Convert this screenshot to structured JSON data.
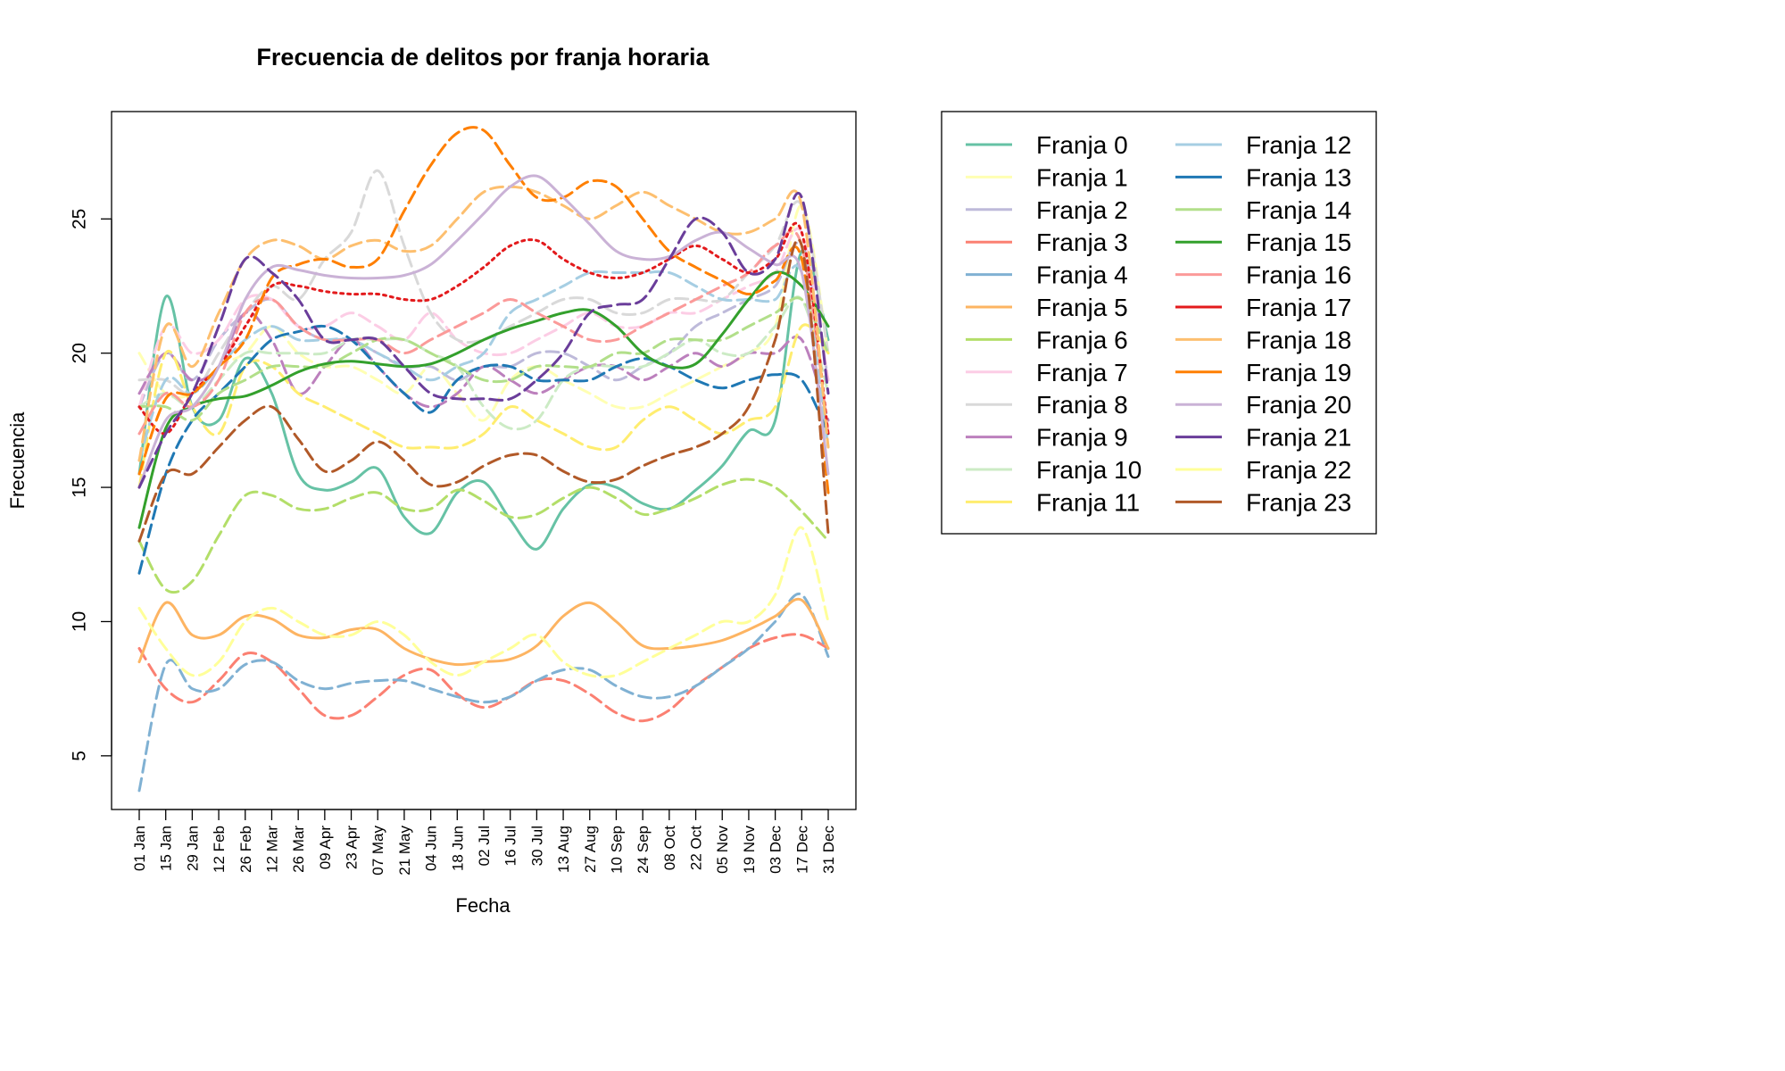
{
  "chart_data": {
    "type": "line",
    "title": "Frecuencia de delitos por franja horaria",
    "xlabel": "Fecha",
    "ylabel": "Frecuencia",
    "ylim": [
      3,
      29
    ],
    "yticks": [
      5,
      10,
      15,
      20,
      25
    ],
    "grid": false,
    "legend_position": "right",
    "x_tick_labels": [
      "01 Jan",
      "15 Jan",
      "29 Jan",
      "12 Feb",
      "26 Feb",
      "12 Mar",
      "26 Mar",
      "09 Apr",
      "23 Apr",
      "07 May",
      "21 May",
      "04 Jun",
      "18 Jun",
      "02 Jul",
      "16 Jul",
      "30 Jul",
      "13 Aug",
      "27 Aug",
      "10 Sep",
      "24 Sep",
      "08 Oct",
      "22 Oct",
      "05 Nov",
      "19 Nov",
      "03 Dec",
      "17 Dec",
      "31 Dec"
    ],
    "x": [
      "01 Jan",
      "15 Jan",
      "29 Jan",
      "12 Feb",
      "26 Feb",
      "12 Mar",
      "26 Mar",
      "09 Apr",
      "23 Apr",
      "07 May",
      "21 May",
      "04 Jun",
      "18 Jun",
      "02 Jul",
      "16 Jul",
      "30 Jul",
      "13 Aug",
      "27 Aug",
      "10 Sep",
      "24 Sep",
      "08 Oct",
      "22 Oct",
      "05 Nov",
      "19 Nov",
      "03 Dec",
      "17 Dec",
      "31 Dec"
    ],
    "series": [
      {
        "name": "Franja 0",
        "color": "#66C2A5",
        "dash": "solid",
        "values": [
          15.5,
          22.1,
          18.0,
          17.5,
          19.8,
          18.5,
          15.5,
          14.9,
          15.2,
          15.7,
          13.9,
          13.3,
          14.8,
          15.2,
          13.8,
          12.7,
          14.2,
          15.1,
          15.0,
          14.4,
          14.2,
          14.9,
          15.8,
          17.1,
          17.5,
          23.8,
          20.5
        ]
      },
      {
        "name": "Franja 1",
        "color": "#FFFFB3",
        "dash": "dashed",
        "values": [
          20.0,
          18.5,
          18.5,
          19.5,
          20.0,
          21.0,
          20.0,
          19.5,
          19.5,
          19.0,
          18.5,
          19.5,
          18.5,
          17.5,
          19.0,
          19.5,
          19.0,
          18.5,
          18.0,
          18.0,
          18.5,
          19.0,
          19.5,
          20.0,
          21.0,
          25.5,
          20.0
        ]
      },
      {
        "name": "Franja 2",
        "color": "#BEBADA",
        "dash": "dashed",
        "values": [
          18.0,
          20.0,
          19.0,
          20.5,
          21.5,
          22.0,
          21.0,
          20.5,
          20.5,
          20.0,
          19.5,
          19.5,
          19.0,
          19.5,
          19.5,
          20.0,
          20.0,
          19.5,
          19.0,
          19.5,
          20.0,
          21.0,
          21.5,
          22.0,
          22.5,
          24.0,
          19.0
        ]
      },
      {
        "name": "Franja 3",
        "color": "#FB8072",
        "dash": "dashed",
        "values": [
          9.0,
          7.5,
          7.0,
          7.8,
          8.8,
          8.5,
          7.5,
          6.5,
          6.5,
          7.2,
          8.0,
          8.2,
          7.3,
          6.8,
          7.2,
          7.8,
          7.8,
          7.3,
          6.6,
          6.3,
          6.7,
          7.6,
          8.3,
          9.0,
          9.4,
          9.5,
          9.0
        ]
      },
      {
        "name": "Franja 4",
        "color": "#80B1D3",
        "dash": "dashed",
        "values": [
          3.7,
          8.4,
          7.5,
          7.5,
          8.4,
          8.5,
          7.8,
          7.5,
          7.7,
          7.8,
          7.8,
          7.5,
          7.2,
          7.0,
          7.2,
          7.8,
          8.2,
          8.2,
          7.6,
          7.2,
          7.2,
          7.6,
          8.3,
          9.0,
          10.0,
          11.0,
          8.7
        ]
      },
      {
        "name": "Franja 5",
        "color": "#FDB462",
        "dash": "solid",
        "values": [
          8.5,
          10.7,
          9.5,
          9.5,
          10.2,
          10.1,
          9.5,
          9.4,
          9.7,
          9.7,
          9.0,
          8.6,
          8.4,
          8.5,
          8.6,
          9.1,
          10.2,
          10.7,
          10.0,
          9.1,
          9.0,
          9.1,
          9.3,
          9.7,
          10.2,
          10.8,
          9.0
        ]
      },
      {
        "name": "Franja 6",
        "color": "#B3DE69",
        "dash": "dashed",
        "values": [
          13.0,
          11.2,
          11.5,
          13.2,
          14.7,
          14.7,
          14.2,
          14.2,
          14.6,
          14.8,
          14.2,
          14.2,
          14.9,
          14.5,
          13.9,
          14.0,
          14.6,
          15.0,
          14.6,
          14.0,
          14.2,
          14.6,
          15.1,
          15.3,
          15.0,
          14.1,
          13.0
        ]
      },
      {
        "name": "Franja 7",
        "color": "#FCCDE5",
        "dash": "dashed",
        "values": [
          18.0,
          21.0,
          20.0,
          20.5,
          22.0,
          22.0,
          21.0,
          21.0,
          21.5,
          21.0,
          20.5,
          21.5,
          20.5,
          20.0,
          20.0,
          20.5,
          21.0,
          21.5,
          21.0,
          21.0,
          21.5,
          21.5,
          22.0,
          22.5,
          23.0,
          24.5,
          19.0
        ]
      },
      {
        "name": "Franja 8",
        "color": "#D9D9D9",
        "dash": "dashed",
        "values": [
          19.0,
          19.0,
          18.5,
          20.0,
          21.5,
          22.5,
          22.0,
          23.5,
          24.5,
          26.8,
          24.0,
          21.5,
          20.5,
          20.5,
          21.0,
          21.5,
          22.0,
          22.0,
          21.5,
          21.5,
          22.0,
          22.0,
          22.0,
          23.0,
          24.0,
          25.5,
          20.0
        ]
      },
      {
        "name": "Franja 9",
        "color": "#BC80BD",
        "dash": "dashed",
        "values": [
          18.5,
          20.0,
          19.0,
          19.5,
          21.5,
          20.5,
          18.5,
          19.5,
          20.5,
          19.5,
          18.5,
          18.0,
          18.5,
          19.5,
          19.0,
          18.5,
          19.0,
          19.5,
          19.5,
          19.0,
          19.5,
          20.0,
          19.5,
          20.0,
          20.0,
          20.5,
          17.5
        ]
      },
      {
        "name": "Franja 10",
        "color": "#CCEBC5",
        "dash": "dashed",
        "values": [
          18.0,
          18.5,
          18.0,
          19.0,
          20.0,
          20.0,
          20.0,
          20.0,
          20.5,
          20.5,
          20.5,
          20.0,
          19.5,
          18.0,
          17.2,
          17.5,
          19.0,
          19.5,
          19.5,
          19.5,
          20.0,
          20.5,
          20.0,
          20.0,
          21.0,
          22.0,
          18.5
        ]
      },
      {
        "name": "Franja 11",
        "color": "#FFED6F",
        "dash": "dashed",
        "values": [
          15.0,
          20.0,
          18.0,
          17.0,
          19.5,
          19.5,
          18.5,
          18.0,
          17.5,
          17.0,
          16.5,
          16.5,
          16.5,
          17.0,
          18.0,
          17.5,
          17.0,
          16.5,
          16.5,
          17.5,
          18.0,
          17.5,
          17.0,
          17.5,
          18.0,
          21.0,
          20.0
        ]
      },
      {
        "name": "Franja 12",
        "color": "#A6CEE3",
        "dash": "dashed",
        "values": [
          16.0,
          19.0,
          18.5,
          19.5,
          20.5,
          21.0,
          20.5,
          20.5,
          20.5,
          20.0,
          19.5,
          19.0,
          19.5,
          20.0,
          21.5,
          22.0,
          22.5,
          23.0,
          23.0,
          23.0,
          23.0,
          22.5,
          22.0,
          22.0,
          22.0,
          23.0,
          16.5
        ]
      },
      {
        "name": "Franja 13",
        "color": "#1F78B4",
        "dash": "dashed",
        "values": [
          11.8,
          15.5,
          17.5,
          18.5,
          19.5,
          20.5,
          20.8,
          21.0,
          20.5,
          19.5,
          18.5,
          17.8,
          19.0,
          19.5,
          19.5,
          19.0,
          19.0,
          19.0,
          19.5,
          19.8,
          19.5,
          19.0,
          18.7,
          19.0,
          19.2,
          19.0,
          17.0
        ]
      },
      {
        "name": "Franja 14",
        "color": "#B2DF8A",
        "dash": "dashed",
        "values": [
          18.0,
          18.0,
          17.5,
          18.5,
          19.0,
          19.5,
          19.5,
          19.5,
          20.0,
          20.5,
          20.5,
          20.0,
          19.5,
          19.0,
          19.0,
          19.5,
          19.5,
          19.5,
          20.0,
          20.0,
          20.5,
          20.5,
          20.5,
          21.0,
          21.5,
          22.0,
          20.0
        ]
      },
      {
        "name": "Franja 15",
        "color": "#33A02C",
        "dash": "solid",
        "values": [
          13.5,
          17.2,
          18.0,
          18.3,
          18.4,
          18.8,
          19.3,
          19.6,
          19.7,
          19.6,
          19.5,
          19.6,
          20.0,
          20.5,
          20.9,
          21.2,
          21.5,
          21.6,
          21.0,
          20.0,
          19.5,
          19.6,
          20.7,
          22.0,
          23.0,
          22.5,
          21.0
        ]
      },
      {
        "name": "Franja 16",
        "color": "#FB9A99",
        "dash": "dashed",
        "values": [
          17.0,
          18.5,
          18.0,
          19.0,
          21.5,
          22.0,
          21.0,
          20.5,
          20.5,
          20.5,
          20.0,
          20.5,
          21.0,
          21.5,
          22.0,
          21.5,
          21.0,
          20.5,
          20.5,
          21.0,
          21.5,
          22.0,
          22.5,
          23.0,
          24.0,
          24.0,
          17.0
        ]
      },
      {
        "name": "Franja 17",
        "color": "#E31A1C",
        "dash": "dotted",
        "values": [
          18.0,
          17.0,
          18.5,
          19.5,
          21.0,
          22.5,
          22.5,
          22.3,
          22.2,
          22.2,
          22.0,
          22.0,
          22.5,
          23.2,
          24.0,
          24.2,
          23.5,
          23.0,
          22.8,
          23.0,
          23.5,
          24.0,
          23.5,
          23.0,
          23.5,
          24.5,
          17.0
        ]
      },
      {
        "name": "Franja 18",
        "color": "#FDBF6F",
        "dash": "dashed",
        "values": [
          16.0,
          21.0,
          19.5,
          21.5,
          23.5,
          24.2,
          24.0,
          23.5,
          24.0,
          24.2,
          23.8,
          24.0,
          25.0,
          26.0,
          26.2,
          26.0,
          25.5,
          25.0,
          25.5,
          26.0,
          25.5,
          25.0,
          24.5,
          24.5,
          25.0,
          25.5,
          16.5
        ]
      },
      {
        "name": "Franja 19",
        "color": "#FF7F00",
        "dash": "dashed",
        "values": [
          15.5,
          18.3,
          18.5,
          19.5,
          20.5,
          22.8,
          23.3,
          23.5,
          23.2,
          23.5,
          25.3,
          27.0,
          28.2,
          28.3,
          27.0,
          25.8,
          25.8,
          26.4,
          26.2,
          25.0,
          23.8,
          23.2,
          22.7,
          22.2,
          22.7,
          23.5,
          14.8
        ]
      },
      {
        "name": "Franja 20",
        "color": "#CAB2D6",
        "dash": "solid",
        "values": [
          15.0,
          17.5,
          18.0,
          19.5,
          22.0,
          23.2,
          23.1,
          22.9,
          22.8,
          22.8,
          22.9,
          23.3,
          24.2,
          25.2,
          26.2,
          26.6,
          25.8,
          24.8,
          23.8,
          23.5,
          23.6,
          24.2,
          24.5,
          23.9,
          23.3,
          23.0,
          15.5
        ]
      },
      {
        "name": "Franja 21",
        "color": "#6A3D9A",
        "dash": "dashed",
        "values": [
          15.0,
          17.0,
          18.5,
          21.0,
          23.5,
          23.0,
          22.0,
          20.5,
          20.5,
          20.5,
          19.5,
          18.5,
          18.3,
          18.3,
          18.3,
          19.0,
          20.0,
          21.5,
          21.8,
          22.0,
          23.5,
          25.0,
          24.5,
          23.0,
          23.5,
          25.8,
          18.5
        ]
      },
      {
        "name": "Franja 22",
        "color": "#FFFF99",
        "dash": "dashed",
        "values": [
          10.5,
          9.0,
          8.0,
          8.5,
          10.0,
          10.5,
          10.0,
          9.5,
          9.5,
          10.0,
          9.5,
          8.5,
          8.0,
          8.5,
          9.0,
          9.5,
          8.5,
          8.0,
          8.0,
          8.5,
          9.0,
          9.5,
          10.0,
          10.0,
          11.0,
          13.5,
          10.0
        ]
      },
      {
        "name": "Franja 23",
        "color": "#B15928",
        "dash": "dashed",
        "values": [
          13.0,
          15.5,
          15.5,
          16.5,
          17.5,
          18.0,
          16.8,
          15.6,
          16.0,
          16.7,
          16.0,
          15.1,
          15.2,
          15.8,
          16.2,
          16.2,
          15.6,
          15.2,
          15.3,
          15.8,
          16.2,
          16.5,
          17.0,
          18.0,
          20.5,
          24.0,
          13.3
        ]
      }
    ]
  }
}
